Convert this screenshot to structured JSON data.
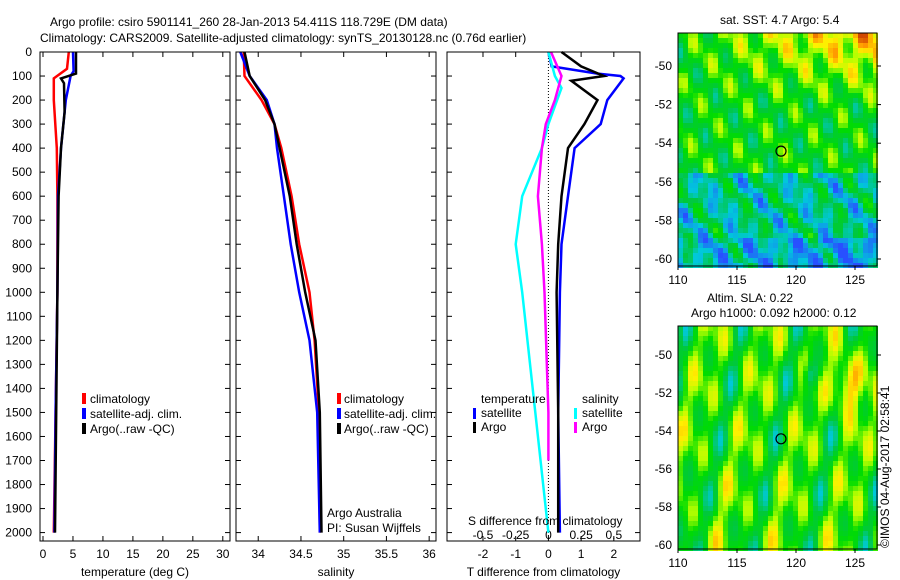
{
  "title": {
    "line1": "Argo profile: csiro 5901141_260 28-Jan-2013 54.411S 118.729E (DM data)",
    "line2": "Climatology: CARS2009. Satellite-adjusted climatology: synTS_20130128.nc (0.76d earlier)"
  },
  "colors": {
    "climatology": "#ff0000",
    "satellite": "#0000ff",
    "argo": "#000000",
    "sal_satellite": "#00ffff",
    "sal_argo": "#ff00ff"
  },
  "chart_data": [
    {
      "type": "line",
      "name": "temperature",
      "xlabel": "temperature (deg C)",
      "xlim": [
        -0.5,
        31.2
      ],
      "ylim": [
        2035,
        0
      ],
      "xticks": [
        "0",
        "5",
        "10",
        "15",
        "20",
        "25",
        "30"
      ],
      "xtick_values": [
        0,
        5,
        10,
        15,
        20,
        25,
        30
      ],
      "yticks": [
        "0",
        "100",
        "200",
        "300",
        "400",
        "500",
        "600",
        "700",
        "800",
        "900",
        "1000",
        "1100",
        "1200",
        "1300",
        "1400",
        "1500",
        "1600",
        "1700",
        "1800",
        "1900",
        "2000"
      ],
      "legend": [
        "climatology",
        "satellite-adj. clim.",
        "Argo(..raw -QC)"
      ],
      "series": [
        {
          "name": "climatology",
          "color": "#ff0000",
          "depth": [
            0,
            70,
            110,
            200,
            400,
            600,
            1000,
            1500,
            2000
          ],
          "values": [
            4.3,
            4.0,
            1.8,
            1.8,
            2.3,
            2.4,
            2.4,
            2.1,
            1.8
          ]
        },
        {
          "name": "satellite-adj. clim.",
          "color": "#0000ff",
          "depth": [
            0,
            80,
            100,
            200,
            400,
            600,
            1000,
            1500,
            2000
          ],
          "values": [
            5.0,
            5.1,
            4.6,
            3.8,
            3.0,
            2.5,
            2.4,
            2.1,
            1.9
          ]
        },
        {
          "name": "Argo(..raw -QC)",
          "color": "#000000",
          "depth": [
            0,
            90,
            110,
            130,
            250,
            400,
            600,
            1000,
            1500,
            2000
          ],
          "values": [
            5.5,
            5.5,
            3.0,
            3.5,
            3.6,
            3.0,
            2.6,
            2.4,
            2.2,
            2.0
          ]
        }
      ]
    },
    {
      "type": "line",
      "name": "salinity",
      "xlabel": "salinity",
      "xlim": [
        33.74,
        36.08
      ],
      "ylim": [
        2035,
        0
      ],
      "xticks": [
        "34",
        "34.5",
        "35",
        "35.5",
        "36"
      ],
      "xtick_values": [
        34,
        34.5,
        35,
        35.5,
        36
      ],
      "legend": [
        "climatology",
        "satellite-adj. clim.",
        "Argo(..raw -QC)"
      ],
      "annotation": [
        "Argo Australia",
        "PI: Susan Wijffels"
      ],
      "series": [
        {
          "name": "climatology",
          "color": "#ff0000",
          "depth": [
            0,
            100,
            200,
            300,
            400,
            600,
            800,
            1000,
            1200,
            1500,
            2000
          ],
          "values": [
            33.83,
            33.84,
            34.04,
            34.19,
            34.27,
            34.39,
            34.48,
            34.6,
            34.66,
            34.71,
            34.72
          ]
        },
        {
          "name": "satellite-adj. clim.",
          "color": "#0000ff",
          "depth": [
            0,
            100,
            200,
            300,
            400,
            600,
            800,
            1000,
            1200,
            1500,
            2000
          ],
          "values": [
            33.79,
            33.9,
            34.1,
            34.19,
            34.22,
            34.3,
            34.38,
            34.48,
            34.6,
            34.69,
            34.72
          ]
        },
        {
          "name": "Argo(..raw -QC)",
          "color": "#000000",
          "depth": [
            0,
            100,
            200,
            300,
            400,
            600,
            800,
            1000,
            1200,
            1500,
            2000
          ],
          "values": [
            33.84,
            33.9,
            34.08,
            34.19,
            34.25,
            34.37,
            34.45,
            34.55,
            34.67,
            34.72,
            34.74
          ]
        }
      ]
    },
    {
      "type": "line",
      "name": "difference",
      "xlabel": "T difference from climatology",
      "xlabel2": "S difference from climatology",
      "xlim": [
        -3.1,
        2.8
      ],
      "ylim": [
        2035,
        0
      ],
      "xticks": [
        "-2",
        "-1",
        "0",
        "1",
        "2"
      ],
      "xtick_values": [
        -2,
        -1,
        0,
        1,
        2
      ],
      "sticks": [
        "-0.5",
        "-0.25",
        "0",
        "0.25",
        "0.5"
      ],
      "stick_values": [
        -0.5,
        -0.25,
        0,
        0.25,
        0.5
      ],
      "legend_temperature": {
        "title": "temperature",
        "items": [
          "satellite",
          "Argo"
        ]
      },
      "legend_salinity": {
        "title": "salinity",
        "items": [
          "satellite",
          "Argo"
        ]
      },
      "series": [
        {
          "name": "T satellite",
          "color": "#0000ff",
          "unit": "T",
          "depth": [
            0,
            60,
            90,
            100,
            110,
            200,
            300,
            400,
            600,
            800,
            1000,
            1500,
            2000
          ],
          "values": [
            0,
            0.1,
            1.5,
            2.2,
            2.3,
            1.8,
            1.6,
            0.8,
            0.6,
            0.4,
            0.35,
            0.3,
            0.35
          ]
        },
        {
          "name": "T Argo",
          "color": "#000000",
          "unit": "T",
          "depth": [
            0,
            60,
            100,
            120,
            200,
            300,
            400,
            600,
            800,
            1000,
            1500,
            2000
          ],
          "values": [
            0.4,
            1.0,
            1.7,
            0.7,
            1.5,
            1.1,
            0.6,
            0.4,
            0.3,
            0.25,
            0.3,
            0.3
          ]
        },
        {
          "name": "S satellite",
          "color": "#00ffff",
          "unit": "S",
          "depth": [
            0,
            100,
            150,
            300,
            400,
            600,
            800,
            1000,
            1500,
            2000
          ],
          "values": [
            0,
            0.05,
            0.1,
            0,
            -0.05,
            -0.2,
            -0.25,
            -0.2,
            -0.1,
            0
          ]
        },
        {
          "name": "S Argo",
          "color": "#ff00ff",
          "unit": "S",
          "depth": [
            0,
            100,
            200,
            300,
            400,
            600,
            800,
            1000,
            1500,
            1700
          ],
          "values": [
            0.02,
            0.1,
            0.05,
            -0.02,
            -0.05,
            -0.08,
            -0.05,
            -0.03,
            0,
            0
          ]
        }
      ]
    },
    {
      "type": "heatmap",
      "name": "sst-map",
      "title": "sat. SST: 4.7 Argo: 5.4",
      "xlim": [
        110,
        127
      ],
      "ylim": [
        -60.4,
        -48.3
      ],
      "xticks": [
        "110",
        "115",
        "120",
        "125"
      ],
      "xtick_values": [
        110,
        115,
        120,
        125
      ],
      "yticks": [
        "-50",
        "-52",
        "-54",
        "-56",
        "-58",
        "-60"
      ],
      "ytick_values": [
        -50,
        -52,
        -54,
        -56,
        -58,
        -60
      ],
      "argo_position": [
        118.729,
        -54.411
      ]
    },
    {
      "type": "heatmap",
      "name": "sla-map",
      "title": "Altim. SLA: 0.22",
      "subtitle": "Argo h1000: 0.092 h2000: 0.12",
      "xlim": [
        110,
        127
      ],
      "ylim": [
        -60.1,
        -48.5
      ],
      "xticks": [
        "110",
        "115",
        "120",
        "125"
      ],
      "xtick_values": [
        110,
        115,
        120,
        125
      ],
      "yticks": [
        "-50",
        "-52",
        "-54",
        "-56",
        "-58",
        "-60"
      ],
      "ytick_values": [
        -50,
        -52,
        -54,
        -56,
        -58,
        -60
      ],
      "argo_position": [
        118.729,
        -54.411
      ]
    }
  ],
  "footer": {
    "copyright": "©IMOS 04-Aug-2017 02:58:41"
  }
}
